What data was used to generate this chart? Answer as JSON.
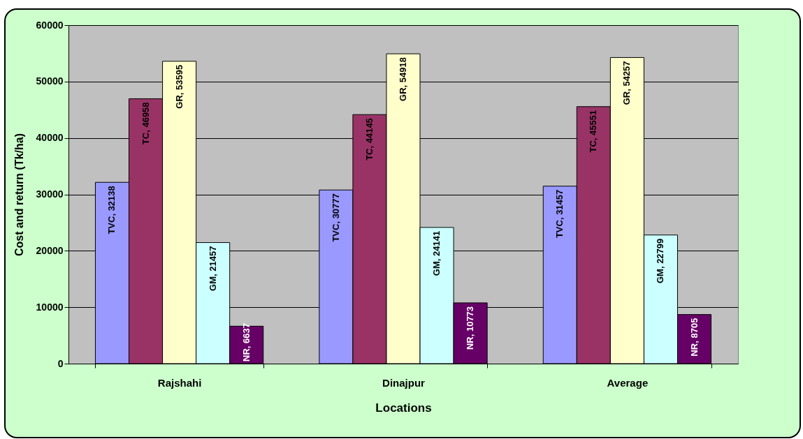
{
  "chart_data": {
    "type": "bar",
    "xlabel": "Locations",
    "ylabel": "Cost and return (Tk/ha)",
    "categories": [
      "Rajshahi",
      "Dinajpur",
      "Average"
    ],
    "series": [
      {
        "color": "#9999ff",
        "values": [
          32138,
          30777,
          31457
        ],
        "value_labels": [
          "TVC, 32138",
          "TVC, 30777",
          "TVC, 31457"
        ]
      },
      {
        "color": "#993366",
        "values": [
          46958,
          44145,
          45551
        ],
        "value_labels": [
          "TC, 46958",
          "TC, 44145",
          "TC, 45551"
        ]
      },
      {
        "color": "#ffffcc",
        "values": [
          53595,
          54918,
          54257
        ],
        "value_labels": [
          "GR, 53595",
          "GR, 54918",
          "GR, 54257"
        ]
      },
      {
        "color": "#ccffff",
        "values": [
          21457,
          24141,
          22799
        ],
        "value_labels": [
          "GM, 21457",
          "GM, 24141",
          "GM, 22799"
        ]
      },
      {
        "color": "#660066",
        "values": [
          6637,
          10773,
          8705
        ],
        "value_labels": [
          "NR, 6637",
          "NR, 10773",
          "NR, 8705"
        ]
      }
    ],
    "ylim": [
      0,
      60000
    ],
    "yticks": [
      0,
      10000,
      20000,
      30000,
      40000,
      50000,
      60000
    ],
    "grid": "y",
    "legend": false
  }
}
